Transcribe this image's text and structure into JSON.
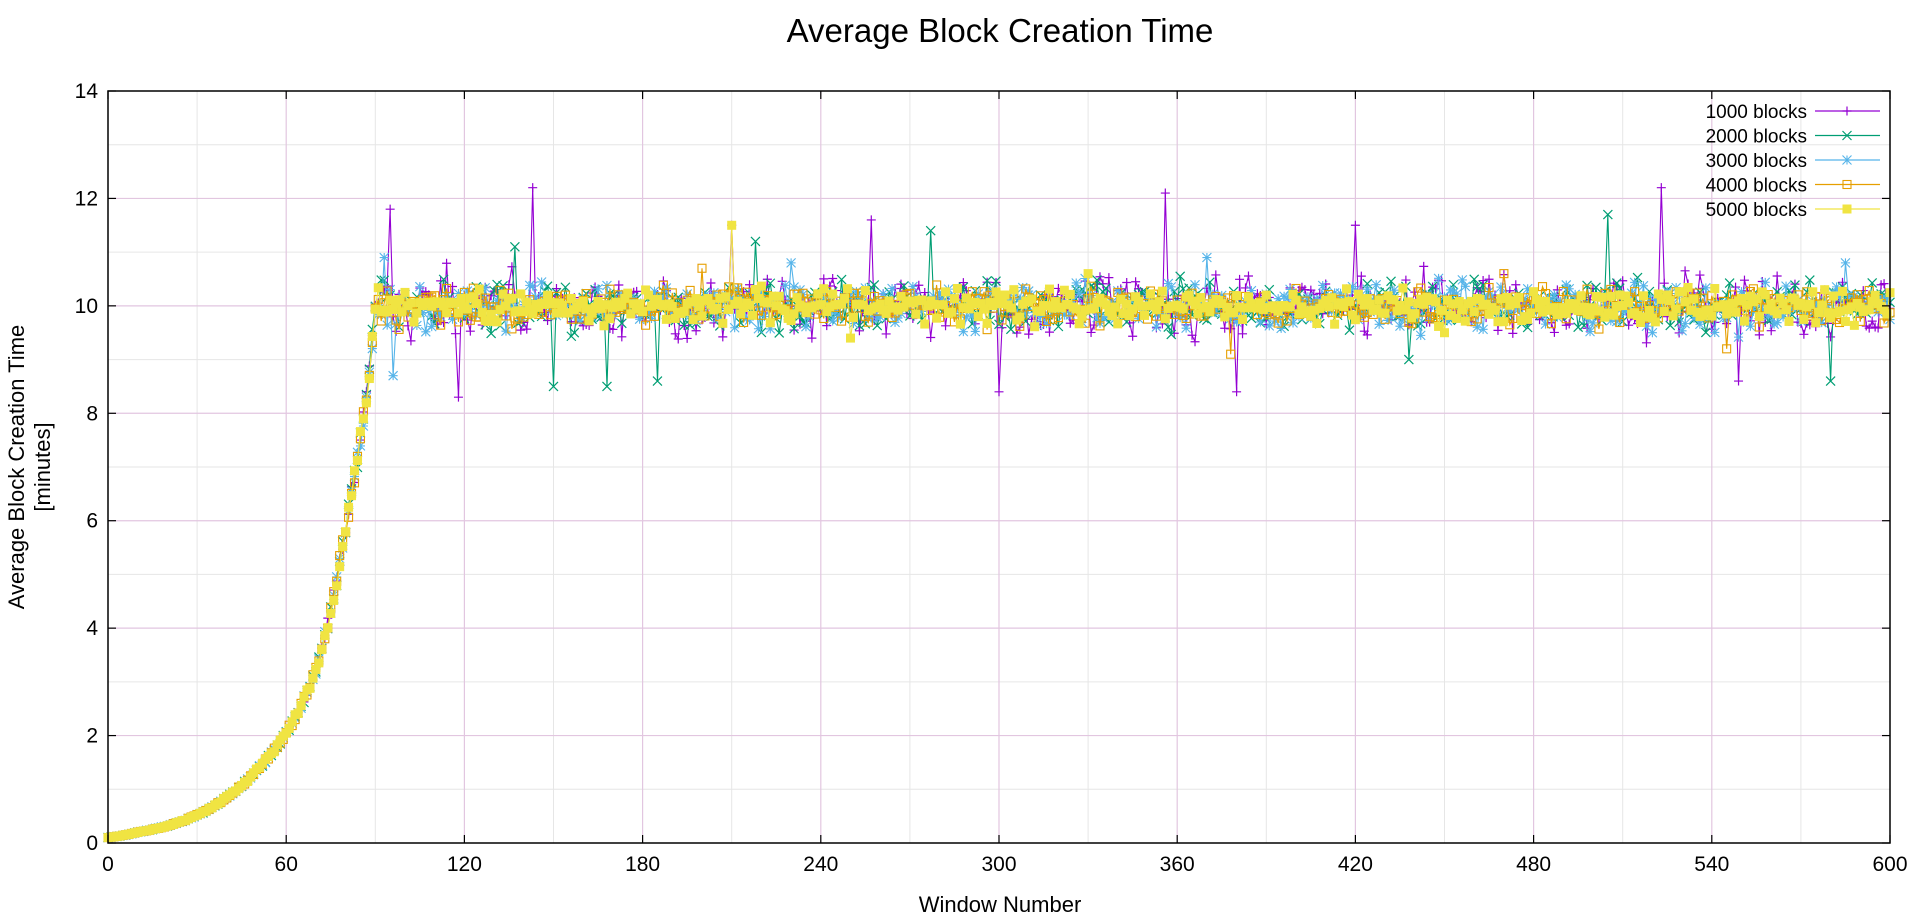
{
  "chart_data": {
    "type": "line",
    "title": "Average Block Creation Time",
    "xlabel": "Window Number",
    "ylabel": [
      "Average Block Creation Time",
      "[minutes]"
    ],
    "xlim": [
      0,
      600
    ],
    "ylim": [
      0,
      14
    ],
    "xticks": [
      0,
      60,
      120,
      180,
      240,
      300,
      360,
      420,
      480,
      540,
      600
    ],
    "yticks": [
      0,
      2,
      4,
      6,
      8,
      10,
      12,
      14
    ],
    "grid": true,
    "legend_position": "top-right",
    "curve_description": "Each series starts near 0.1 at window 0, grows roughly exponentially until window 90 (about 10 minutes), then fluctuates around 10 minutes through window 600.",
    "ramp": {
      "x": [
        0,
        10,
        20,
        30,
        40,
        50,
        60,
        70,
        80,
        85,
        90
      ],
      "y": [
        0.1,
        0.2,
        0.32,
        0.52,
        0.85,
        1.35,
        2.05,
        3.2,
        5.9,
        7.5,
        9.9
      ]
    },
    "plateau_level": 10.0,
    "series": [
      {
        "name": "1000 blocks",
        "color": "#9400d3",
        "marker": "plus",
        "amplitude": 0.55,
        "peaks": [
          [
            95,
            11.8
          ],
          [
            118,
            8.3
          ],
          [
            143,
            12.2
          ],
          [
            210,
            11.5
          ],
          [
            257,
            11.6
          ],
          [
            300,
            8.4
          ],
          [
            356,
            12.1
          ],
          [
            380,
            8.4
          ],
          [
            420,
            11.5
          ],
          [
            523,
            12.2
          ],
          [
            549,
            8.6
          ]
        ]
      },
      {
        "name": "2000 blocks",
        "color": "#009e73",
        "marker": "cross",
        "amplitude": 0.42,
        "peaks": [
          [
            137,
            11.1
          ],
          [
            150,
            8.5
          ],
          [
            168,
            8.5
          ],
          [
            185,
            8.6
          ],
          [
            218,
            11.2
          ],
          [
            277,
            11.4
          ],
          [
            438,
            9.0
          ],
          [
            505,
            11.7
          ],
          [
            580,
            8.6
          ]
        ]
      },
      {
        "name": "3000 blocks",
        "color": "#56b4e9",
        "marker": "star",
        "amplitude": 0.38,
        "peaks": [
          [
            93,
            10.9
          ],
          [
            96,
            8.7
          ],
          [
            230,
            10.8
          ],
          [
            370,
            10.9
          ],
          [
            520,
            9.5
          ],
          [
            585,
            10.8
          ]
        ]
      },
      {
        "name": "4000 blocks",
        "color": "#e69f00",
        "marker": "square",
        "amplitude": 0.3,
        "peaks": [
          [
            200,
            10.7
          ],
          [
            378,
            9.1
          ],
          [
            470,
            10.6
          ],
          [
            545,
            9.2
          ]
        ]
      },
      {
        "name": "5000 blocks",
        "color": "#f0e442",
        "marker": "filled-square",
        "amplitude": 0.28,
        "peaks": [
          [
            210,
            11.5
          ],
          [
            250,
            9.4
          ],
          [
            330,
            10.6
          ],
          [
            450,
            9.5
          ]
        ]
      }
    ]
  }
}
